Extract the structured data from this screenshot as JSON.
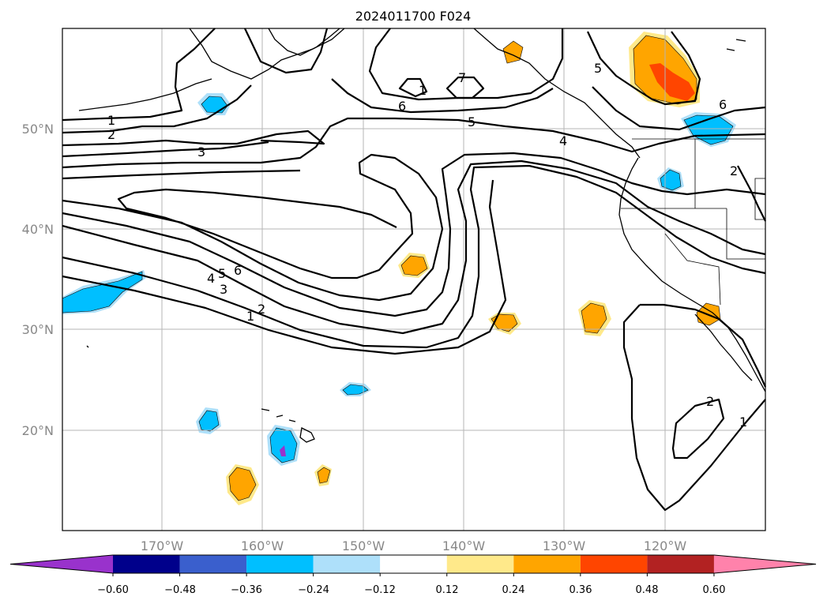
{
  "map": {
    "title": "2024011700 F024",
    "lat_labels": [
      "50°N",
      "40°N",
      "30°N",
      "20°N"
    ],
    "lon_labels": [
      "170°W",
      "160°W",
      "150°W",
      "140°W",
      "130°W",
      "120°W"
    ],
    "contour_labels": [
      "1",
      "2",
      "3",
      "4",
      "5",
      "6",
      "7"
    ]
  },
  "colorbar": {
    "tick_labels": [
      "−0.60",
      "−0.48",
      "−0.36",
      "−0.24",
      "−0.12",
      "0.12",
      "0.24",
      "0.36",
      "0.48",
      "0.60"
    ],
    "colors": [
      "#9932cc",
      "#00008b",
      "#3a5fcd",
      "#00bfff",
      "#aee0fa",
      "#ffffff",
      "#ffe98a",
      "#ffa500",
      "#ff4500",
      "#b22222",
      "#ff82ab"
    ]
  }
}
